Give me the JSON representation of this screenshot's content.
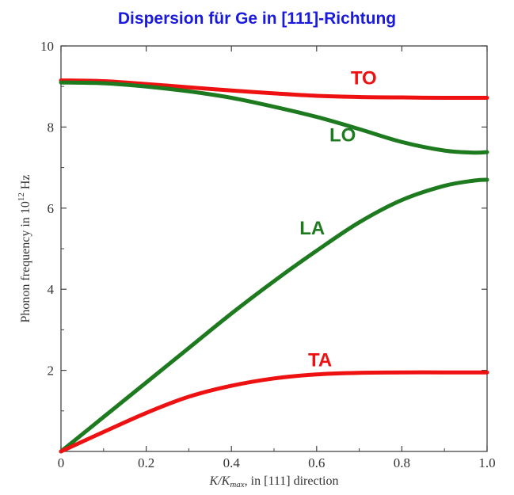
{
  "title": "Dispersion für Ge in [111]-Richtung",
  "chart_data": {
    "type": "line",
    "title": "Dispersion für Ge in [111]-Richtung",
    "xlabel_main": "K/K",
    "xlabel_sub": "max",
    "xlabel_rest": ", in [111] direction",
    "ylabel_main": "Phonon frequency in 10",
    "ylabel_sup": "12",
    "ylabel_rest": " Hz",
    "xlim": [
      0,
      1.0
    ],
    "ylim": [
      0,
      10
    ],
    "x_ticks": [
      "0",
      "0.2",
      "0.4",
      "0.6",
      "0.8",
      "1.0"
    ],
    "y_ticks": [
      "2",
      "4",
      "6",
      "8",
      "10"
    ],
    "colors": {
      "red": "#ee1111",
      "green": "#1e7a1e"
    },
    "series": [
      {
        "name": "TO",
        "color": "#ee1111",
        "x": [
          0,
          0.1,
          0.2,
          0.3,
          0.4,
          0.5,
          0.6,
          0.7,
          0.8,
          0.9,
          1.0
        ],
        "y": [
          9.15,
          9.13,
          9.06,
          8.98,
          8.9,
          8.83,
          8.77,
          8.74,
          8.73,
          8.72,
          8.72
        ],
        "label_at": [
          0.68,
          9.05
        ]
      },
      {
        "name": "LO",
        "color": "#1e7a1e",
        "x": [
          0,
          0.1,
          0.2,
          0.3,
          0.4,
          0.5,
          0.6,
          0.7,
          0.8,
          0.9,
          0.97,
          1.0
        ],
        "y": [
          9.1,
          9.08,
          9.0,
          8.88,
          8.72,
          8.5,
          8.25,
          7.95,
          7.63,
          7.42,
          7.37,
          7.38
        ],
        "label_at": [
          0.63,
          7.65
        ]
      },
      {
        "name": "LA",
        "color": "#1e7a1e",
        "x": [
          0,
          0.1,
          0.2,
          0.3,
          0.4,
          0.5,
          0.6,
          0.7,
          0.8,
          0.9,
          0.97,
          1.0
        ],
        "y": [
          0,
          0.85,
          1.7,
          2.55,
          3.4,
          4.2,
          4.95,
          5.65,
          6.2,
          6.55,
          6.68,
          6.7
        ],
        "label_at": [
          0.56,
          5.35
        ]
      },
      {
        "name": "TA",
        "color": "#ee1111",
        "x": [
          0,
          0.1,
          0.2,
          0.3,
          0.4,
          0.5,
          0.6,
          0.7,
          0.8,
          0.9,
          1.0
        ],
        "y": [
          0,
          0.48,
          0.95,
          1.35,
          1.62,
          1.8,
          1.9,
          1.94,
          1.95,
          1.95,
          1.95
        ],
        "label_at": [
          0.58,
          2.1
        ]
      }
    ]
  }
}
